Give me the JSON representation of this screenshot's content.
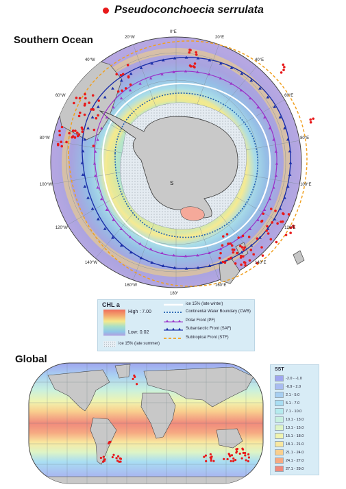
{
  "title": {
    "species": "Pseudoconchoecia serrulata",
    "marker_color": "#e8191a"
  },
  "southern_map": {
    "heading": "Southern Ocean",
    "longitude_labels": [
      "0°E",
      "20°E",
      "40°E",
      "60°E",
      "80°E",
      "100°E",
      "120°E",
      "140°E",
      "160°E",
      "180°",
      "160°W",
      "140°W",
      "120°W",
      "100°W",
      "80°W",
      "60°W",
      "40°W",
      "20°W"
    ],
    "inset_label": "S"
  },
  "legend": {
    "chl_title": "CHL a",
    "chl_high": "High : 7.00",
    "chl_low": "Low: 0.02",
    "ice_summer": "ice 15% (late summer)",
    "ice_winter": "ice 15% (late winter)",
    "cwb": "Continental Water Boundary (CWB)",
    "pf": "Polar Front (PF)",
    "saf": "Subantarctic Front (SAF)",
    "stf": "Subtropical Front (STF)",
    "colors": {
      "ice_winter": "#ffffff",
      "cwb": "#1f5fb0",
      "pf": "#9b33c8",
      "saf": "#1b2fa8",
      "stf": "#f0a020"
    }
  },
  "global_map": {
    "heading": "Global",
    "sst_title": "SST",
    "sst_classes": [
      {
        "label": "-2.0 - -1.0",
        "color": "#9fa6ef"
      },
      {
        "label": "-0.9 - 2.0",
        "color": "#a9bdf1"
      },
      {
        "label": "2.1 - 5.0",
        "color": "#a7cff2"
      },
      {
        "label": "5.1 - 7.0",
        "color": "#a9def3"
      },
      {
        "label": "7.1 - 10.0",
        "color": "#b5ebee"
      },
      {
        "label": "10.1 - 13.0",
        "color": "#c8f0df"
      },
      {
        "label": "13.1 - 15.0",
        "color": "#def4c6"
      },
      {
        "label": "15.1 - 18.0",
        "color": "#f0f4b0"
      },
      {
        "label": "18.1 - 21.0",
        "color": "#f9e8a0"
      },
      {
        "label": "21.1 - 24.0",
        "color": "#f9cf8e"
      },
      {
        "label": "24.1 - 27.0",
        "color": "#f6aa82"
      },
      {
        "label": "27.1 - 29.0",
        "color": "#f08a7c"
      }
    ]
  }
}
